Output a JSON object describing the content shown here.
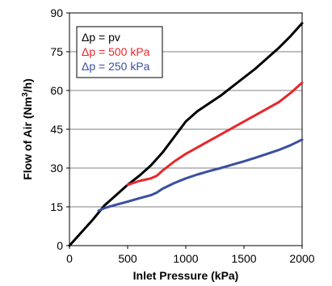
{
  "chart_data": {
    "type": "line",
    "title": "",
    "xlabel": "Inlet Pressure (kPa)",
    "ylabel_main": "Flow of Air (Nm",
    "ylabel_sup": "3",
    "ylabel_end": "/h)",
    "xlim": [
      0,
      2000
    ],
    "ylim": [
      0,
      90
    ],
    "xticks": [
      0,
      500,
      1000,
      1500,
      2000
    ],
    "yticks": [
      0,
      15,
      30,
      45,
      60,
      75,
      90
    ],
    "grid": "horizontal",
    "legend_position": "top-left",
    "legend": [
      {
        "prefix": "Δp = ",
        "label": "pv",
        "color": "#000000"
      },
      {
        "prefix": "Δp = ",
        "label": "500 kPa",
        "color": "#e8262b"
      },
      {
        "prefix": "Δp = ",
        "label": "250 kPa",
        "color": "#3a4fa0"
      }
    ],
    "series": [
      {
        "color": "#000000",
        "points": [
          [
            0,
            0
          ],
          [
            100,
            5
          ],
          [
            200,
            10
          ],
          [
            300,
            15.5
          ],
          [
            400,
            19.5
          ],
          [
            500,
            23.5
          ],
          [
            600,
            27
          ],
          [
            700,
            31
          ],
          [
            800,
            36
          ],
          [
            900,
            42
          ],
          [
            1000,
            48
          ],
          [
            1100,
            52
          ],
          [
            1200,
            55
          ],
          [
            1300,
            58
          ],
          [
            1400,
            61.5
          ],
          [
            1500,
            65
          ],
          [
            1600,
            68.5
          ],
          [
            1700,
            72.5
          ],
          [
            1800,
            76.5
          ],
          [
            1900,
            81
          ],
          [
            2000,
            86
          ]
        ]
      },
      {
        "color": "#e8262b",
        "points": [
          [
            500,
            23.5
          ],
          [
            600,
            25
          ],
          [
            700,
            26
          ],
          [
            750,
            27
          ],
          [
            800,
            29
          ],
          [
            900,
            32.5
          ],
          [
            1000,
            35.5
          ],
          [
            1100,
            38
          ],
          [
            1200,
            40.5
          ],
          [
            1300,
            43
          ],
          [
            1400,
            45.5
          ],
          [
            1500,
            48
          ],
          [
            1600,
            50.5
          ],
          [
            1700,
            53
          ],
          [
            1800,
            55.5
          ],
          [
            1900,
            59
          ],
          [
            2000,
            63
          ]
        ]
      },
      {
        "color": "#3a4fa0",
        "points": [
          [
            250,
            13.5
          ],
          [
            300,
            14.5
          ],
          [
            400,
            15.8
          ],
          [
            500,
            17
          ],
          [
            600,
            18.3
          ],
          [
            700,
            19.5
          ],
          [
            750,
            20.5
          ],
          [
            800,
            22
          ],
          [
            900,
            24.2
          ],
          [
            1000,
            26
          ],
          [
            1100,
            27.5
          ],
          [
            1200,
            28.8
          ],
          [
            1300,
            30
          ],
          [
            1400,
            31.3
          ],
          [
            1500,
            32.6
          ],
          [
            1600,
            34
          ],
          [
            1700,
            35.5
          ],
          [
            1800,
            37
          ],
          [
            1900,
            38.8
          ],
          [
            2000,
            41
          ]
        ]
      }
    ]
  }
}
